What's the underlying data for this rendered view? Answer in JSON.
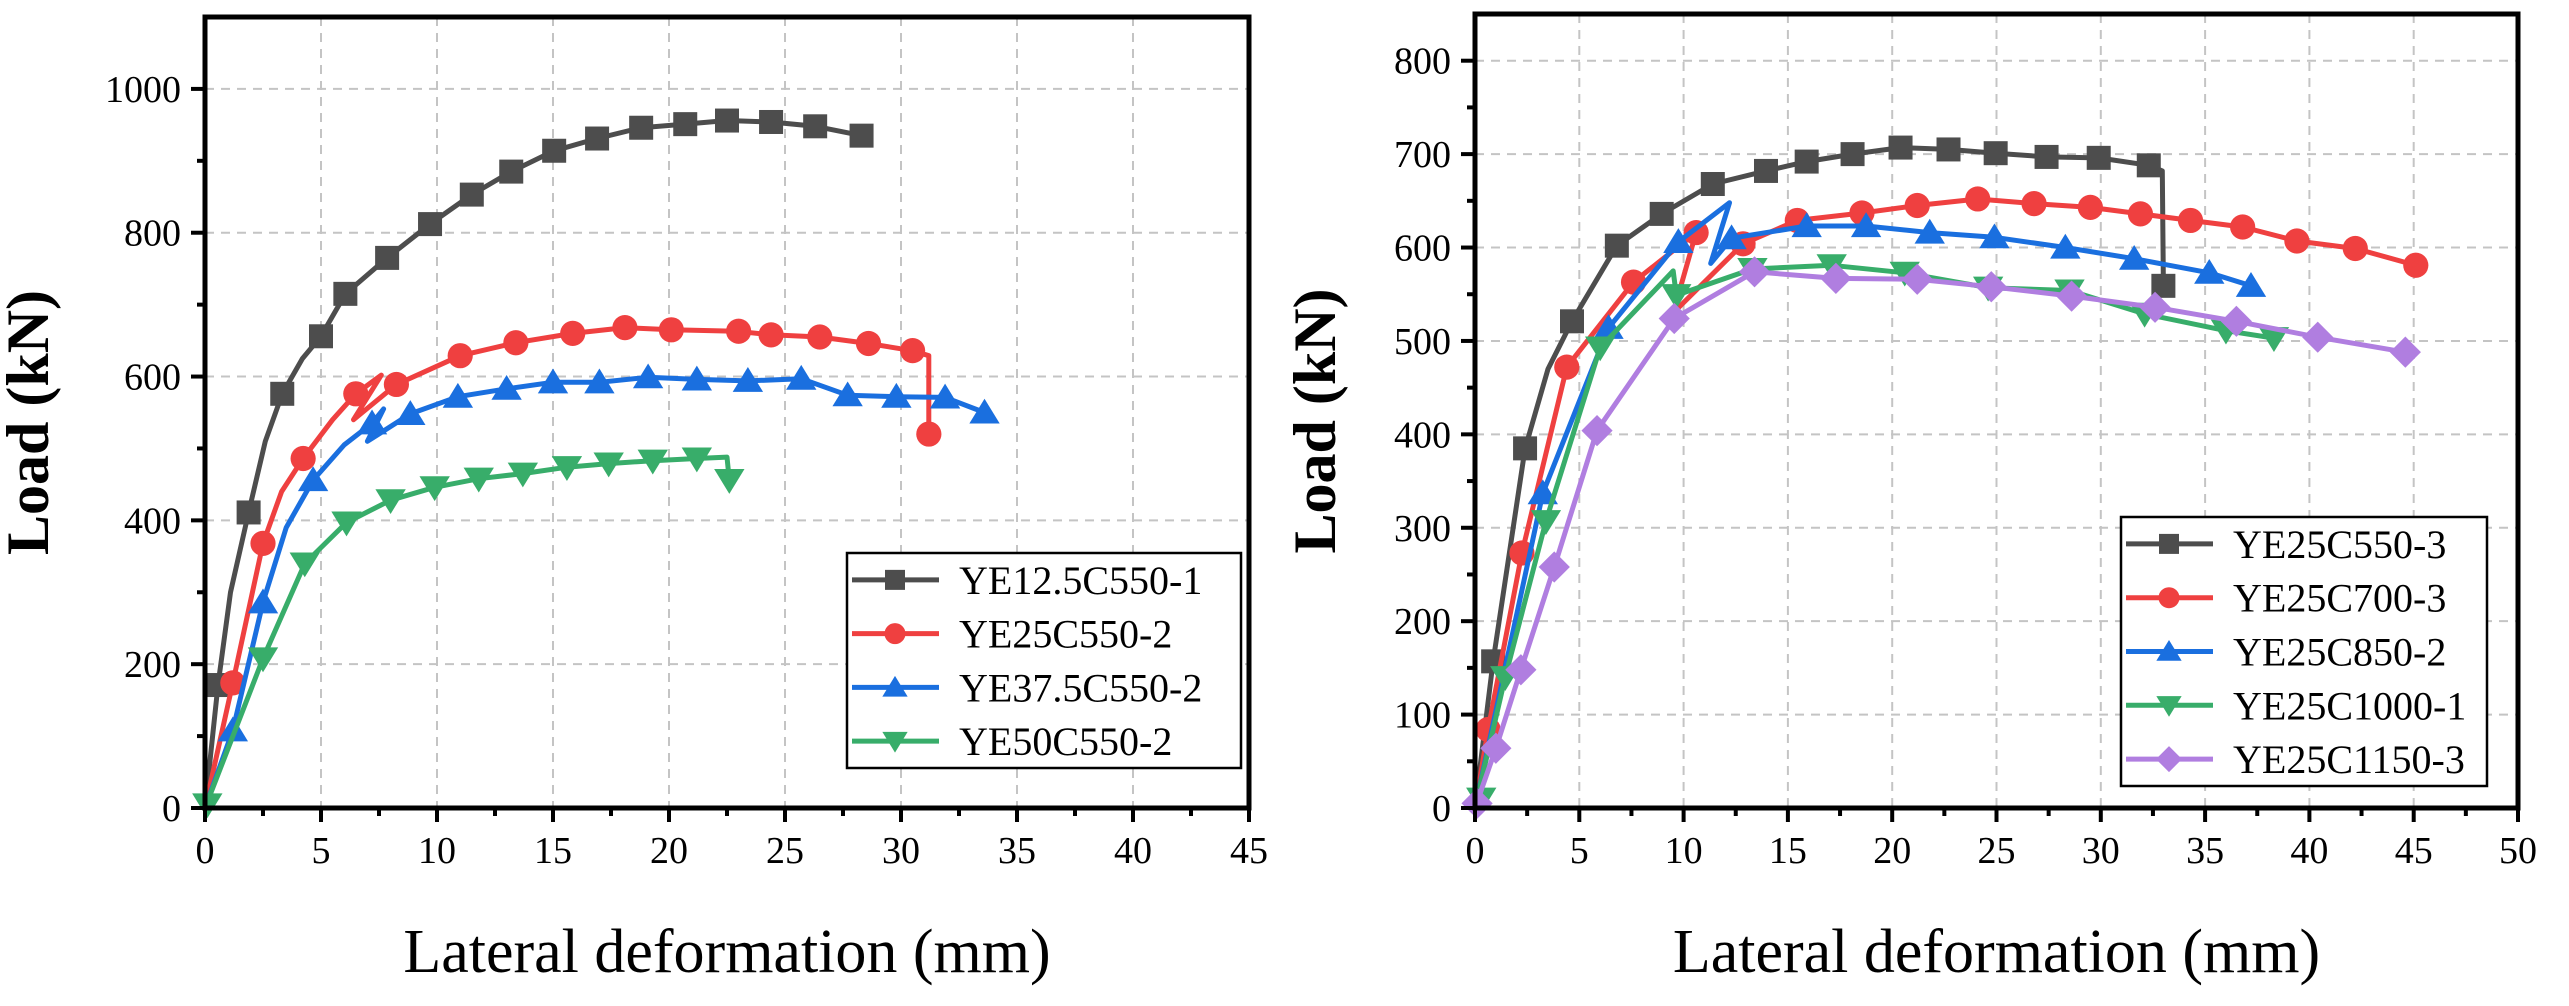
{
  "chart_data": [
    {
      "type": "line",
      "title": "",
      "xlabel": "Lateral deformation (mm)",
      "ylabel": "Load (kN)",
      "xlim": [
        0,
        45
      ],
      "ylim": [
        0,
        1100
      ],
      "x_ticks": [
        0,
        5,
        10,
        15,
        20,
        25,
        30,
        35,
        40,
        45
      ],
      "x_tick_labels": [
        "0",
        "5",
        "10",
        "15",
        "20",
        "25",
        "30",
        "35",
        "40",
        "45"
      ],
      "x_minor_step": 2.5,
      "y_ticks": [
        0,
        200,
        400,
        600,
        800,
        1000
      ],
      "y_tick_labels": [
        "0",
        "200",
        "400",
        "600",
        "800",
        "1000"
      ],
      "y_minor_step": 100,
      "grid": true,
      "legend_position": "bottom-right",
      "series": [
        {
          "name": "YE12.5C550-1",
          "color": "#4d4d4d",
          "marker": "square",
          "x": [
            0,
            0.56,
            1.1,
            1.88,
            2.6,
            3.33,
            4.2,
            5.0,
            6.05,
            7.85,
            9.7,
            11.5,
            13.2,
            15.05,
            16.9,
            18.8,
            20.7,
            22.5,
            24.4,
            26.3,
            28.3
          ],
          "y": [
            0,
            171,
            300,
            411,
            510,
            576,
            625,
            656,
            715,
            765,
            812,
            853,
            885,
            914,
            931,
            946,
            951,
            956,
            954,
            948,
            935
          ],
          "markers_x": [
            0.56,
            1.88,
            3.33,
            5.0,
            6.05,
            7.85,
            9.7,
            11.5,
            13.2,
            15.05,
            16.9,
            18.8,
            20.7,
            22.5,
            24.4,
            26.3,
            28.3
          ],
          "markers_y": [
            171,
            411,
            576,
            656,
            715,
            765,
            812,
            853,
            885,
            914,
            931,
            946,
            951,
            956,
            954,
            948,
            935
          ]
        },
        {
          "name": "YE25C550-2",
          "color": "#ef4040",
          "marker": "circle",
          "x": [
            0,
            1.2,
            2.5,
            3.3,
            4.23,
            5.5,
            6.5,
            7.6,
            6.4,
            8.25,
            11.0,
            13.4,
            15.85,
            18.1,
            20.1,
            22.9,
            24.4,
            26.5,
            28.6,
            30.5,
            31.2,
            31.2
          ],
          "y": [
            0,
            174,
            368,
            440,
            486,
            540,
            576,
            602,
            540,
            589,
            629,
            647,
            660,
            668,
            665,
            663,
            658,
            655,
            646,
            636,
            629,
            520
          ],
          "markers_x": [
            1.2,
            2.5,
            4.23,
            6.5,
            8.25,
            11.0,
            13.4,
            15.85,
            18.1,
            20.1,
            23.0,
            24.4,
            26.5,
            28.6,
            30.5,
            31.2
          ],
          "markers_y": [
            174,
            368,
            486,
            576,
            589,
            629,
            647,
            660,
            668,
            665,
            663,
            658,
            655,
            646,
            636,
            520
          ]
        },
        {
          "name": "YE37.5C550-2",
          "color": "#1a6fdf",
          "marker": "triangle-up",
          "x": [
            0,
            1.2,
            2.5,
            3.5,
            4.66,
            6.0,
            7.2,
            7.7,
            7.0,
            8.85,
            10.9,
            13.0,
            15.0,
            17.0,
            19.1,
            21.2,
            23.4,
            25.7,
            27.7,
            29.8,
            31.9,
            33.6
          ],
          "y": [
            0,
            108,
            286,
            390,
            456,
            505,
            535,
            555,
            510,
            548,
            572,
            583,
            592,
            592,
            599,
            596,
            594,
            597,
            574,
            572,
            571,
            550
          ],
          "markers_x": [
            1.2,
            2.5,
            4.66,
            7.2,
            8.85,
            10.9,
            13.0,
            15.0,
            17.0,
            19.1,
            21.2,
            23.4,
            25.7,
            27.7,
            29.8,
            31.9,
            33.6
          ],
          "markers_y": [
            108,
            286,
            456,
            535,
            548,
            572,
            583,
            592,
            592,
            599,
            596,
            594,
            597,
            574,
            572,
            571,
            550
          ]
        },
        {
          "name": "YE50C550-2",
          "color": "#38ad6a",
          "marker": "triangle-down",
          "x": [
            0,
            2.5,
            4.3,
            6.1,
            8.0,
            9.9,
            11.8,
            13.7,
            15.6,
            17.4,
            19.3,
            21.2,
            22.5,
            22.6
          ],
          "y": [
            0,
            208,
            340,
            397,
            428,
            446,
            458,
            465,
            474,
            479,
            483,
            486,
            488,
            456
          ],
          "markers_x": [
            0.1,
            2.5,
            4.3,
            6.1,
            8.0,
            9.9,
            11.8,
            13.7,
            15.6,
            17.4,
            19.3,
            21.2,
            22.6
          ],
          "markers_y": [
            5,
            208,
            340,
            397,
            428,
            446,
            458,
            465,
            474,
            479,
            483,
            486,
            456
          ]
        }
      ]
    },
    {
      "type": "line",
      "title": "",
      "xlabel": "Lateral deformation (mm)",
      "ylabel": "Load (kN)",
      "xlim": [
        0,
        50
      ],
      "ylim": [
        0,
        850
      ],
      "x_ticks": [
        0,
        5,
        10,
        15,
        20,
        25,
        30,
        35,
        40,
        45,
        50
      ],
      "x_tick_labels": [
        "0",
        "5",
        "10",
        "15",
        "20",
        "25",
        "30",
        "35",
        "40",
        "45",
        "50"
      ],
      "x_minor_step": 2.5,
      "y_ticks": [
        0,
        100,
        200,
        300,
        400,
        500,
        600,
        700,
        800
      ],
      "y_tick_labels": [
        "0",
        "100",
        "200",
        "300",
        "400",
        "500",
        "600",
        "700",
        "800"
      ],
      "y_minor_step": 50,
      "grid": true,
      "legend_position": "bottom-right",
      "series": [
        {
          "name": "YE25C550-3",
          "color": "#4d4d4d",
          "marker": "square",
          "x": [
            0,
            0.87,
            2.4,
            3.5,
            4.65,
            6.8,
            8.95,
            11.4,
            13.95,
            15.9,
            18.1,
            20.4,
            22.7,
            24.96,
            27.4,
            29.9,
            32.3,
            32.95,
            33.0
          ],
          "y": [
            0,
            157,
            385,
            470,
            521,
            602,
            636,
            668,
            682,
            692,
            700,
            707,
            705,
            701,
            697,
            696,
            688,
            682,
            559
          ],
          "markers_x": [
            0.87,
            2.4,
            4.65,
            6.8,
            8.95,
            11.4,
            13.95,
            15.9,
            18.1,
            20.4,
            22.7,
            24.96,
            27.4,
            29.9,
            32.3,
            33.0
          ],
          "markers_y": [
            157,
            385,
            521,
            602,
            636,
            668,
            682,
            692,
            700,
            707,
            705,
            701,
            697,
            696,
            688,
            559
          ]
        },
        {
          "name": "YE25C700-3",
          "color": "#ef4040",
          "marker": "circle",
          "x": [
            0,
            0.63,
            2.25,
            4.4,
            7.6,
            10.6,
            9.5,
            12.85,
            15.45,
            18.55,
            21.2,
            24.1,
            26.8,
            29.5,
            31.9,
            34.3,
            36.8,
            39.4,
            42.2,
            45.1
          ],
          "y": [
            0,
            84,
            273,
            472,
            563,
            616,
            530,
            604,
            629,
            637,
            645,
            652,
            647,
            643,
            636,
            629,
            622,
            607,
            599,
            581
          ],
          "markers_x": [
            0.63,
            2.25,
            4.4,
            7.6,
            10.6,
            12.85,
            15.45,
            18.55,
            21.2,
            24.1,
            26.8,
            29.5,
            31.9,
            34.3,
            36.8,
            39.4,
            42.2,
            45.1
          ],
          "markers_y": [
            84,
            273,
            472,
            563,
            616,
            604,
            629,
            637,
            645,
            652,
            647,
            643,
            636,
            629,
            622,
            607,
            599,
            581
          ]
        },
        {
          "name": "YE25C850-2",
          "color": "#1a6fdf",
          "marker": "triangle-up",
          "x": [
            0,
            3.25,
            6.4,
            9.75,
            12.2,
            11.3,
            12.3,
            15.9,
            18.75,
            21.8,
            24.9,
            28.3,
            31.6,
            35.2,
            37.2
          ],
          "y": [
            0,
            337,
            514,
            606,
            648,
            583,
            610,
            623,
            623,
            616,
            611,
            600,
            588,
            573,
            559
          ],
          "markers_x": [
            3.25,
            6.4,
            9.75,
            12.3,
            15.9,
            18.75,
            21.8,
            24.9,
            28.3,
            31.6,
            35.2,
            37.2
          ],
          "markers_y": [
            337,
            514,
            606,
            610,
            623,
            623,
            616,
            611,
            600,
            588,
            573,
            559
          ]
        },
        {
          "name": "YE25C1000-1",
          "color": "#38ad6a",
          "marker": "triangle-down",
          "x": [
            0,
            1.45,
            3.4,
            6.0,
            9.5,
            9.65,
            13.3,
            17.1,
            20.6,
            24.6,
            28.5,
            32.1,
            36.0,
            38.3
          ],
          "y": [
            0,
            140,
            307,
            493,
            575,
            549,
            577,
            581,
            573,
            557,
            554,
            529,
            511,
            503
          ],
          "markers_x": [
            0.3,
            1.45,
            3.4,
            6.0,
            9.65,
            13.3,
            17.1,
            20.6,
            24.6,
            28.5,
            32.1,
            36.0,
            38.3
          ],
          "markers_y": [
            10,
            140,
            307,
            493,
            549,
            577,
            581,
            573,
            557,
            554,
            529,
            511,
            503
          ]
        },
        {
          "name": "YE25C1150-3",
          "color": "#b07ee0",
          "marker": "diamond",
          "x": [
            0,
            1.0,
            2.2,
            3.8,
            5.85,
            9.55,
            13.4,
            17.3,
            21.2,
            24.75,
            28.6,
            32.6,
            36.5,
            40.4,
            44.6
          ],
          "y": [
            0,
            64,
            148,
            258,
            404,
            524,
            574,
            567,
            566,
            558,
            548,
            536,
            521,
            504,
            488
          ],
          "markers_x": [
            0.1,
            1.0,
            2.2,
            3.8,
            5.85,
            9.55,
            13.4,
            17.3,
            21.2,
            24.75,
            28.6,
            32.6,
            36.5,
            40.4,
            44.6
          ],
          "markers_y": [
            5,
            64,
            148,
            258,
            404,
            524,
            574,
            567,
            566,
            558,
            548,
            536,
            521,
            504,
            488
          ]
        }
      ]
    }
  ]
}
